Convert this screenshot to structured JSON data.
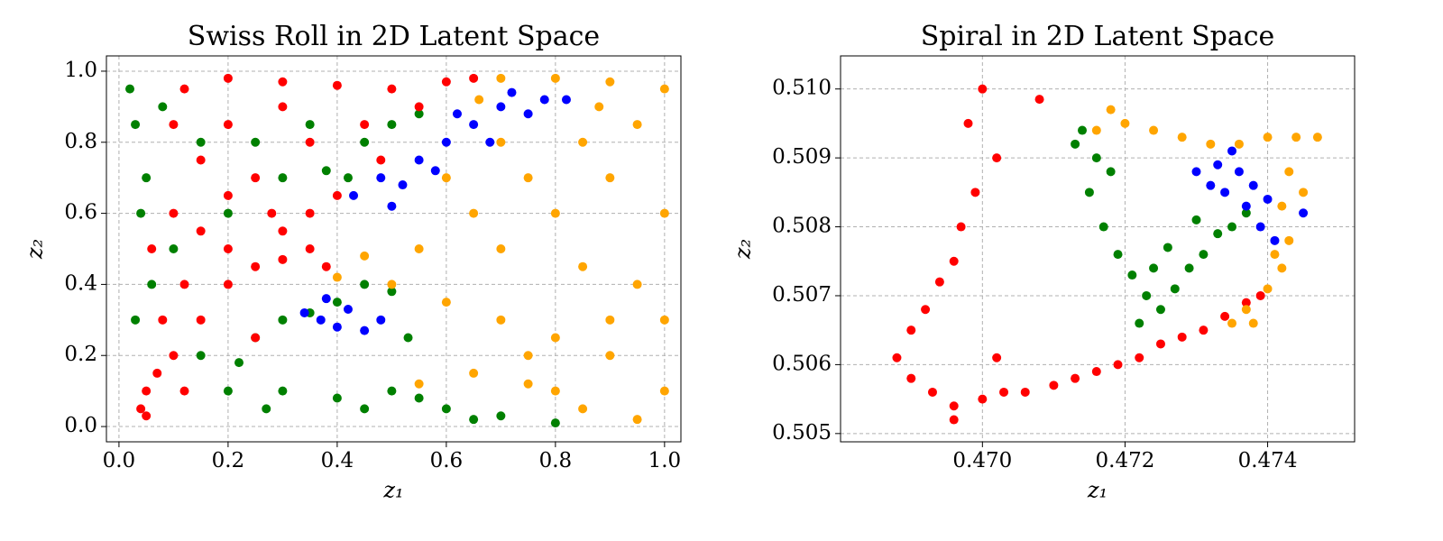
{
  "chart_data": [
    {
      "type": "scatter",
      "title": "Swiss Roll in 2D Latent Space",
      "xlabel": "z₁",
      "ylabel": "z₂",
      "xlim": [
        -0.023,
        1.03
      ],
      "ylim": [
        -0.043,
        1.043
      ],
      "xticks": [
        {
          "value": 0,
          "label": "0.0"
        },
        0.2,
        0.4,
        0.6,
        0.8,
        {
          "value": 1,
          "label": "1.0"
        }
      ],
      "yticks": [
        {
          "value": 0,
          "label": "0.0"
        },
        0.2,
        0.4,
        0.6,
        0.8,
        {
          "value": 1,
          "label": "1.0"
        }
      ],
      "grid": true,
      "series": [
        {
          "color": "green",
          "x": [
            0.02,
            0.03,
            0.05,
            0.04,
            0.06,
            0.03,
            0.08,
            0.15,
            0.25,
            0.35,
            0.42,
            0.45,
            0.5,
            0.55,
            0.2,
            0.3,
            0.4,
            0.5,
            0.6,
            0.7,
            0.8,
            0.22,
            0.25,
            0.3,
            0.35,
            0.4,
            0.45,
            0.5,
            0.53,
            0.15,
            0.1,
            0.2,
            0.3,
            0.38,
            0.27,
            0.45,
            0.55,
            0.65
          ],
          "values": [
            0.95,
            0.85,
            0.7,
            0.6,
            0.4,
            0.3,
            0.9,
            0.8,
            0.8,
            0.85,
            0.7,
            0.8,
            0.85,
            0.88,
            0.1,
            0.1,
            0.08,
            0.1,
            0.05,
            0.03,
            0.01,
            0.18,
            0.25,
            0.3,
            0.32,
            0.35,
            0.4,
            0.38,
            0.25,
            0.2,
            0.5,
            0.6,
            0.7,
            0.72,
            0.05,
            0.05,
            0.08,
            0.02
          ]
        },
        {
          "color": "red",
          "x": [
            0.04,
            0.05,
            0.07,
            0.1,
            0.08,
            0.12,
            0.06,
            0.1,
            0.15,
            0.2,
            0.25,
            0.3,
            0.35,
            0.38,
            0.3,
            0.2,
            0.15,
            0.25,
            0.35,
            0.4,
            0.2,
            0.3,
            0.12,
            0.2,
            0.3,
            0.4,
            0.5,
            0.6,
            0.65,
            0.45,
            0.35,
            0.1,
            0.15,
            0.2,
            0.05,
            0.25,
            0.12,
            0.28,
            0.55,
            0.48
          ],
          "values": [
            0.05,
            0.1,
            0.15,
            0.2,
            0.3,
            0.4,
            0.5,
            0.6,
            0.55,
            0.5,
            0.45,
            0.47,
            0.5,
            0.45,
            0.55,
            0.65,
            0.75,
            0.7,
            0.6,
            0.65,
            0.85,
            0.9,
            0.95,
            0.98,
            0.97,
            0.96,
            0.95,
            0.97,
            0.98,
            0.85,
            0.8,
            0.85,
            0.3,
            0.4,
            0.03,
            0.25,
            0.1,
            0.6,
            0.9,
            0.75
          ]
        },
        {
          "color": "blue",
          "x": [
            0.43,
            0.48,
            0.52,
            0.55,
            0.6,
            0.65,
            0.7,
            0.75,
            0.78,
            0.58,
            0.62,
            0.68,
            0.5,
            0.34,
            0.37,
            0.4,
            0.45,
            0.48,
            0.38,
            0.42,
            0.72,
            0.82
          ],
          "values": [
            0.65,
            0.7,
            0.68,
            0.75,
            0.8,
            0.85,
            0.9,
            0.88,
            0.92,
            0.72,
            0.88,
            0.8,
            0.62,
            0.32,
            0.3,
            0.28,
            0.27,
            0.3,
            0.36,
            0.33,
            0.94,
            0.92
          ]
        },
        {
          "color": "orange",
          "x": [
            0.7,
            0.8,
            0.9,
            1.0,
            0.95,
            0.85,
            0.75,
            0.65,
            0.55,
            0.45,
            0.4,
            0.5,
            0.6,
            0.7,
            0.8,
            0.9,
            1.0,
            0.95,
            0.85,
            0.75,
            0.65,
            0.55,
            0.7,
            0.8,
            0.9,
            1.0,
            0.95,
            0.85,
            0.75,
            0.9,
            0.6,
            0.7,
            1.0,
            0.8,
            0.88,
            0.66
          ],
          "values": [
            0.98,
            0.98,
            0.97,
            0.95,
            0.85,
            0.8,
            0.7,
            0.6,
            0.5,
            0.48,
            0.42,
            0.4,
            0.35,
            0.3,
            0.25,
            0.2,
            0.1,
            0.02,
            0.05,
            0.12,
            0.15,
            0.12,
            0.5,
            0.6,
            0.7,
            0.6,
            0.4,
            0.45,
            0.2,
            0.3,
            0.7,
            0.8,
            0.3,
            0.1,
            0.9,
            0.92
          ]
        }
      ]
    },
    {
      "type": "scatter",
      "title": "Spiral in 2D Latent Space",
      "xlabel": "z₁",
      "ylabel": "z₂",
      "xlim": [
        0.46801,
        0.47522
      ],
      "ylim": [
        0.50488,
        0.51048
      ],
      "xticks": [
        {
          "value": 0.47,
          "label": "0.470"
        },
        0.472,
        0.474
      ],
      "yticks": [
        0.505,
        0.506,
        0.507,
        0.508,
        0.509,
        {
          "value": 0.51,
          "label": "0.510"
        }
      ],
      "grid": true,
      "series": [
        {
          "color": "red",
          "x": [
            0.47,
            0.4698,
            0.4702,
            0.4699,
            0.4697,
            0.4696,
            0.4694,
            0.4692,
            0.469,
            0.4688,
            0.469,
            0.4693,
            0.4696,
            0.47,
            0.4703,
            0.4706,
            0.471,
            0.4713,
            0.4716,
            0.4719,
            0.4722,
            0.4725,
            0.4728,
            0.4731,
            0.4734,
            0.4737,
            0.4739,
            0.4708,
            0.4696,
            0.4702
          ],
          "values": [
            0.51,
            0.5095,
            0.509,
            0.5085,
            0.508,
            0.5075,
            0.5072,
            0.5068,
            0.5065,
            0.5061,
            0.5058,
            0.5056,
            0.5054,
            0.5055,
            0.5056,
            0.5056,
            0.5057,
            0.5058,
            0.5059,
            0.506,
            0.5061,
            0.5063,
            0.5064,
            0.5065,
            0.5067,
            0.5069,
            0.507,
            0.50985,
            0.5052,
            0.5061
          ]
        },
        {
          "color": "green",
          "x": [
            0.4714,
            0.4716,
            0.4715,
            0.4717,
            0.4719,
            0.4721,
            0.4723,
            0.4725,
            0.4727,
            0.4729,
            0.4731,
            0.4733,
            0.4735,
            0.4737,
            0.4722,
            0.4718,
            0.4713,
            0.4726,
            0.473,
            0.4724
          ],
          "values": [
            0.5094,
            0.509,
            0.5085,
            0.508,
            0.5076,
            0.5073,
            0.507,
            0.5068,
            0.5071,
            0.5074,
            0.5076,
            0.5079,
            0.508,
            0.5082,
            0.5066,
            0.5088,
            0.5092,
            0.5077,
            0.5081,
            0.5074
          ]
        },
        {
          "color": "blue",
          "x": [
            0.473,
            0.4733,
            0.4736,
            0.4738,
            0.4734,
            0.4737,
            0.474,
            0.4739,
            0.4732,
            0.4745,
            0.4735,
            0.4741
          ],
          "values": [
            0.5088,
            0.5089,
            0.5088,
            0.5086,
            0.5085,
            0.5083,
            0.5084,
            0.508,
            0.5086,
            0.5082,
            0.5091,
            0.5078
          ]
        },
        {
          "color": "orange",
          "x": [
            0.4716,
            0.472,
            0.4724,
            0.4728,
            0.4732,
            0.4736,
            0.474,
            0.4744,
            0.4747,
            0.4743,
            0.4742,
            0.4743,
            0.4742,
            0.474,
            0.4737,
            0.4738,
            0.4718,
            0.4745,
            0.4741,
            0.4735
          ],
          "values": [
            0.5094,
            0.5095,
            0.5094,
            0.5093,
            0.5092,
            0.5092,
            0.5093,
            0.5093,
            0.5093,
            0.5088,
            0.5083,
            0.5078,
            0.5074,
            0.5071,
            0.5068,
            0.5066,
            0.5097,
            0.5085,
            0.5076,
            0.5066
          ]
        }
      ]
    }
  ]
}
